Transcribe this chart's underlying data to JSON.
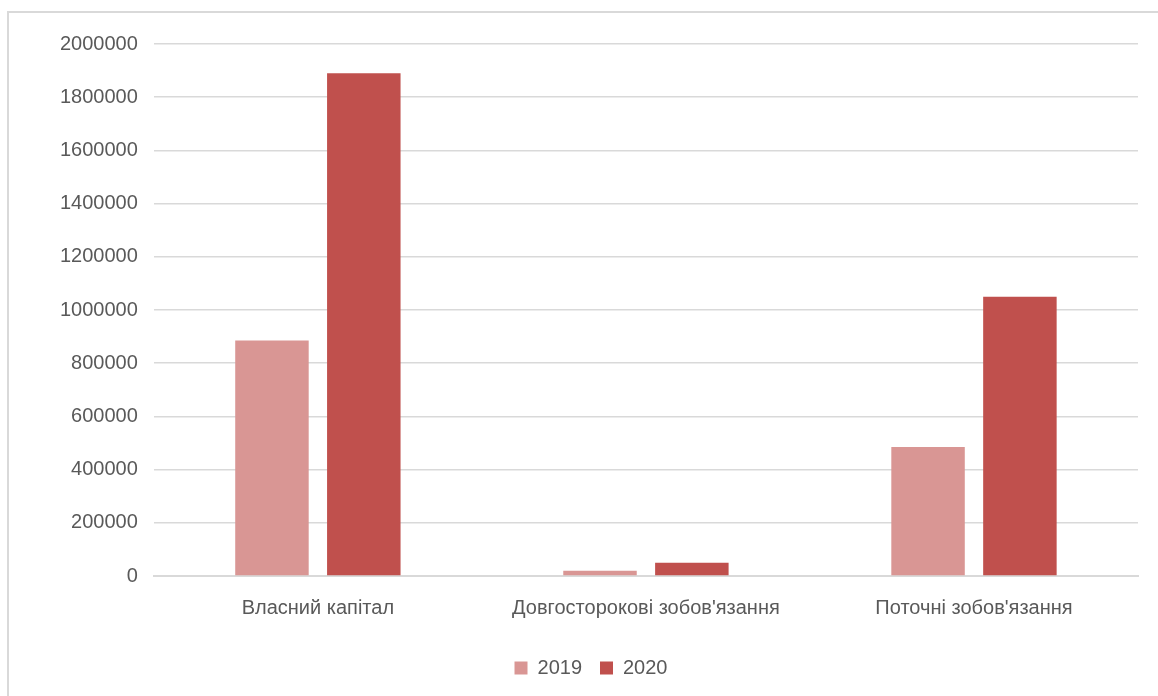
{
  "chart_data": {
    "type": "bar",
    "categories": [
      "Власний капітал",
      "Довгосторокові зобов'язання",
      "Поточні зобов'язання"
    ],
    "series": [
      {
        "name": "2019",
        "color": "#d99694",
        "values": [
          885000,
          20000,
          485000
        ]
      },
      {
        "name": "2020",
        "color": "#c0504d",
        "values": [
          1890000,
          50000,
          1050000
        ]
      }
    ],
    "ylim": [
      0,
      2000000
    ],
    "yticks": [
      0,
      200000,
      400000,
      600000,
      800000,
      1000000,
      1200000,
      1400000,
      1600000,
      1800000,
      2000000
    ],
    "grid": "y",
    "legend": "bottom"
  }
}
